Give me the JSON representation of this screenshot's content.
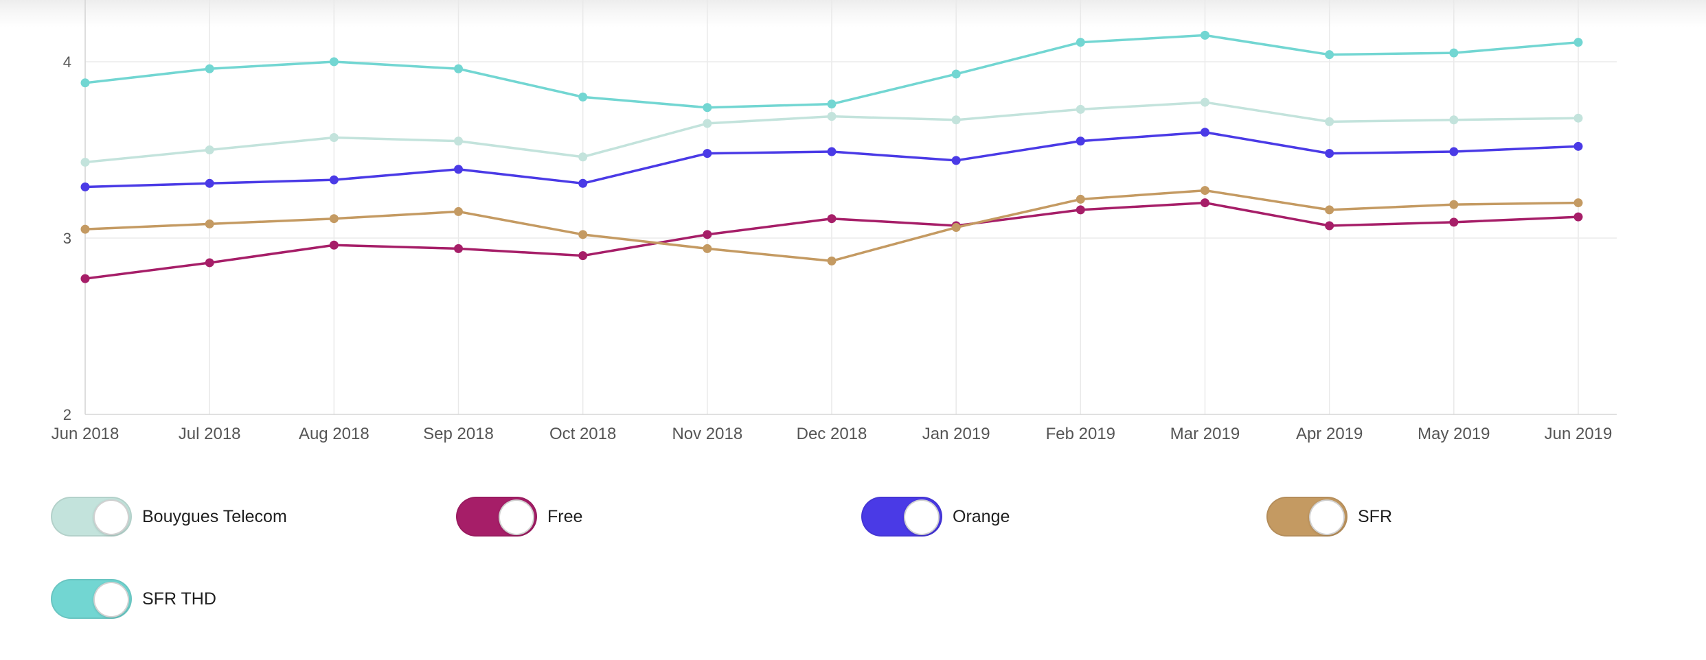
{
  "chart_data": {
    "type": "line",
    "categories": [
      "Jun 2018",
      "Jul 2018",
      "Aug 2018",
      "Sep 2018",
      "Oct 2018",
      "Nov 2018",
      "Dec 2018",
      "Jan 2019",
      "Feb 2019",
      "Mar 2019",
      "Apr 2019",
      "May 2019",
      "Jun 2019"
    ],
    "ylim": [
      2,
      4.35
    ],
    "yticks": [
      "2",
      "3",
      "4"
    ],
    "grid": true,
    "series": [
      {
        "name": "Bouygues Telecom",
        "color": "#c3e3dc",
        "values": [
          3.43,
          3.5,
          3.57,
          3.55,
          3.46,
          3.65,
          3.69,
          3.67,
          3.73,
          3.77,
          3.66,
          3.67,
          3.68
        ]
      },
      {
        "name": "Free",
        "color": "#a61e68",
        "values": [
          2.77,
          2.86,
          2.96,
          2.94,
          2.9,
          3.02,
          3.11,
          3.07,
          3.16,
          3.2,
          3.07,
          3.09,
          3.12
        ]
      },
      {
        "name": "Orange",
        "color": "#4a3ae6",
        "values": [
          3.29,
          3.31,
          3.33,
          3.39,
          3.31,
          3.48,
          3.49,
          3.44,
          3.55,
          3.6,
          3.48,
          3.49,
          3.52
        ]
      },
      {
        "name": "SFR",
        "color": "#c49a62",
        "values": [
          3.05,
          3.08,
          3.11,
          3.15,
          3.02,
          2.94,
          2.87,
          3.06,
          3.22,
          3.27,
          3.16,
          3.19,
          3.2
        ]
      },
      {
        "name": "SFR THD",
        "color": "#72d6d2",
        "values": [
          3.88,
          3.96,
          4.0,
          3.96,
          3.8,
          3.74,
          3.76,
          3.93,
          4.11,
          4.15,
          4.04,
          4.05,
          4.11
        ]
      }
    ]
  },
  "legend": {
    "items": [
      {
        "label": "Bouygues Telecom",
        "color": "#c3e3dc",
        "on": true
      },
      {
        "label": "Free",
        "color": "#a61e68",
        "on": true
      },
      {
        "label": "Orange",
        "color": "#4a3ae6",
        "on": true
      },
      {
        "label": "SFR",
        "color": "#c49a62",
        "on": true
      },
      {
        "label": "SFR THD",
        "color": "#72d6d2",
        "on": true
      }
    ]
  }
}
